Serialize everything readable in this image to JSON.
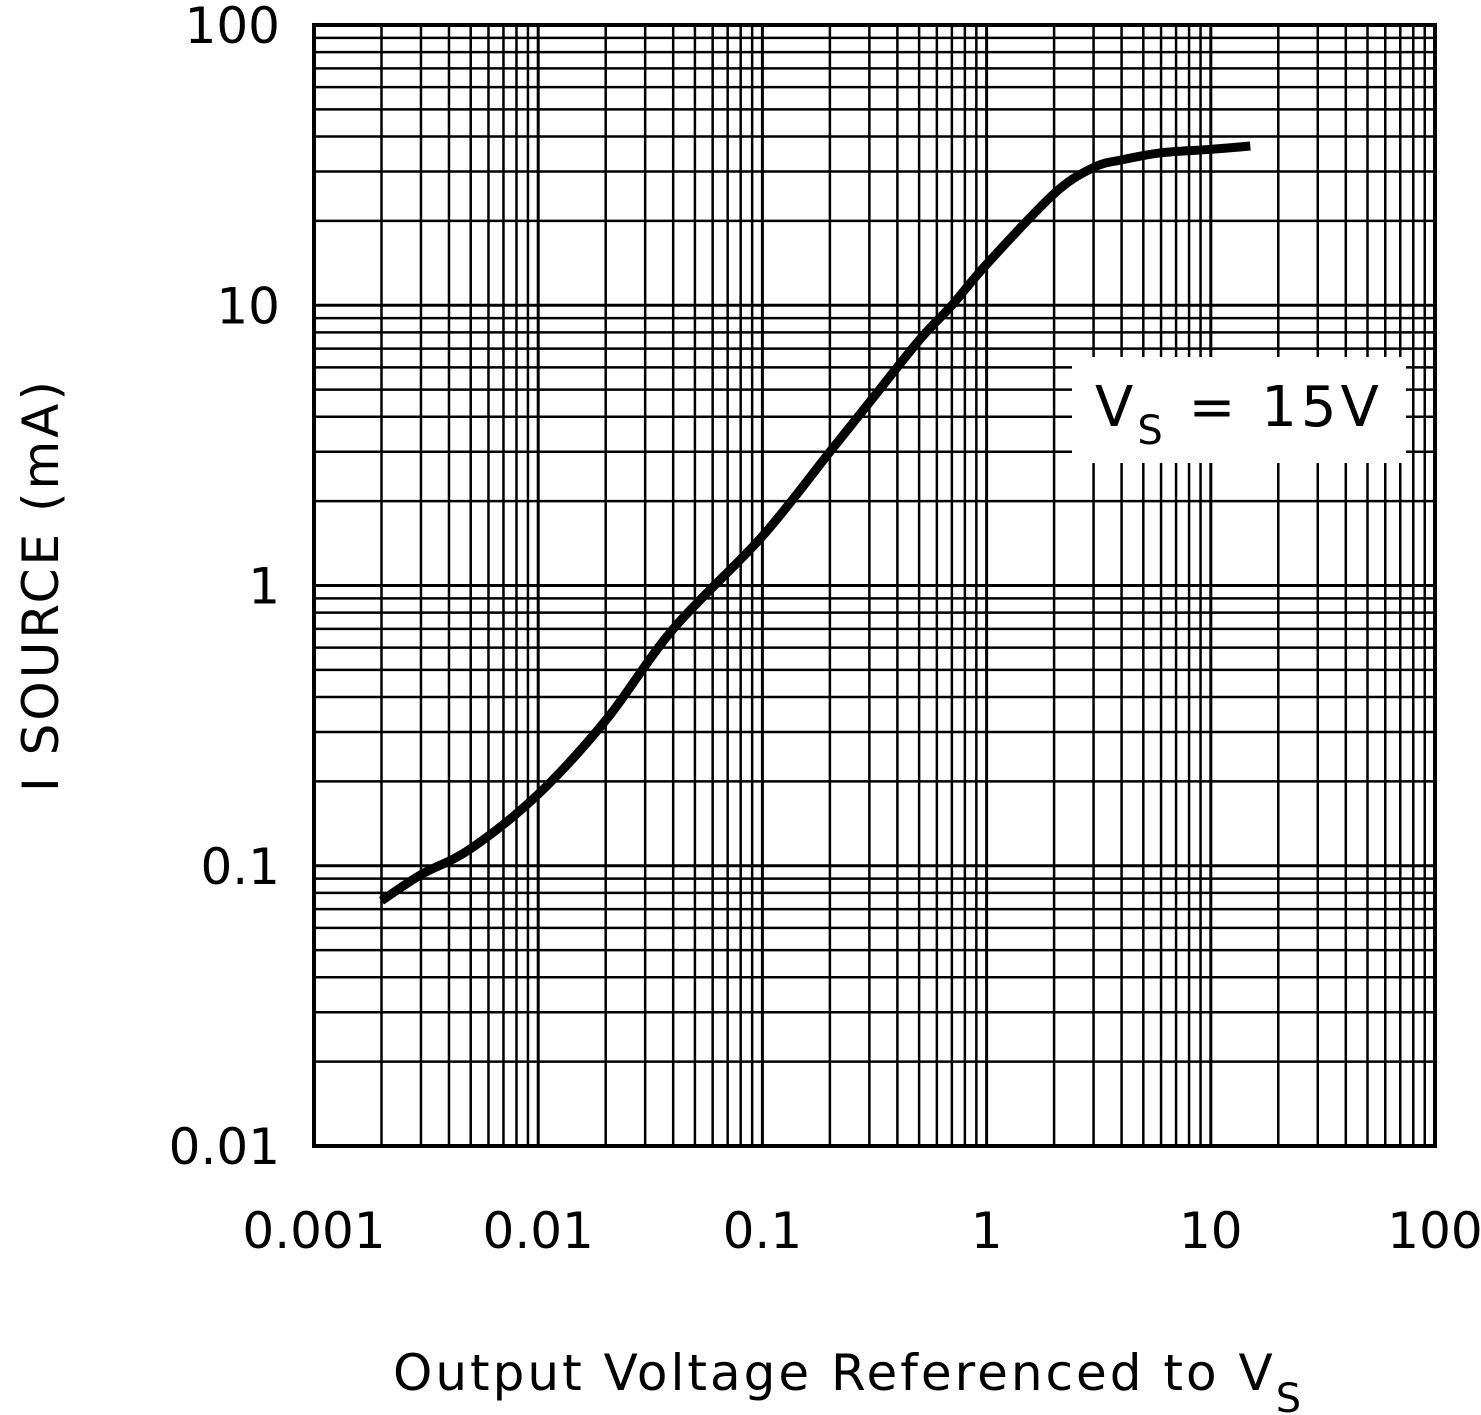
{
  "chart_data": {
    "type": "line",
    "title": "",
    "xscale": "log",
    "yscale": "log",
    "xlim": [
      0.001,
      100
    ],
    "ylim": [
      0.01,
      100
    ],
    "xticks": [
      "0.001",
      "0.01",
      "0.1",
      "1",
      "10",
      "100"
    ],
    "yticks": [
      "0.01",
      "0.1",
      "1",
      "10",
      "100"
    ],
    "xlabel": {
      "text": "Output Voltage Referenced to V",
      "sub": "S"
    },
    "ylabel": "I SOURCE (mA)",
    "grid": true,
    "annotation": {
      "main": "V",
      "sub": "S",
      "rest": " = 15V"
    },
    "series": [
      {
        "name": "VS = 15V",
        "x": [
          0.002,
          0.003,
          0.005,
          0.01,
          0.02,
          0.04,
          0.1,
          0.2,
          0.3,
          0.5,
          0.7,
          1,
          2,
          3,
          4,
          6,
          10,
          15
        ],
        "y": [
          0.075,
          0.093,
          0.115,
          0.18,
          0.33,
          0.7,
          1.5,
          3.0,
          4.5,
          7.5,
          10,
          14,
          25,
          31,
          33,
          35,
          36,
          37
        ]
      }
    ]
  }
}
